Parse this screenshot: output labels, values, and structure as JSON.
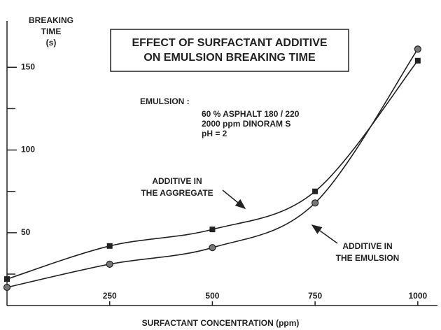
{
  "chart_data": {
    "type": "line",
    "title": [
      "EFFECT OF SURFACTANT ADDITIVE",
      "ON EMULSION BREAKING TIME"
    ],
    "y_label": [
      "BREAKING",
      "TIME",
      "(s)"
    ],
    "x_label": "SURFACTANT CONCENTRATION (ppm)",
    "emulsion_note": {
      "heading": "EMULSION :",
      "lines": [
        "60 % ASPHALT 180 / 220",
        "2000 ppm DINORAM S",
        "pH = 2"
      ]
    },
    "x": [
      0,
      250,
      500,
      750,
      1000
    ],
    "series": [
      {
        "name": [
          "ADDITIVE IN",
          "THE AGGREGATE"
        ],
        "marker": "square",
        "color": "#222222",
        "values": [
          22,
          42,
          52,
          75,
          154
        ]
      },
      {
        "name": [
          "ADDITIVE IN",
          "THE EMULSION"
        ],
        "marker": "circle",
        "color": "#222222",
        "values": [
          17,
          31,
          41,
          68,
          161
        ]
      }
    ],
    "xlim": [
      0,
      1048
    ],
    "ylim": [
      6,
      178
    ],
    "xticks": [
      250,
      500,
      750,
      1000
    ],
    "yticks": [
      50,
      100,
      150
    ],
    "minor_yticks": [
      25,
      75,
      125
    ]
  }
}
